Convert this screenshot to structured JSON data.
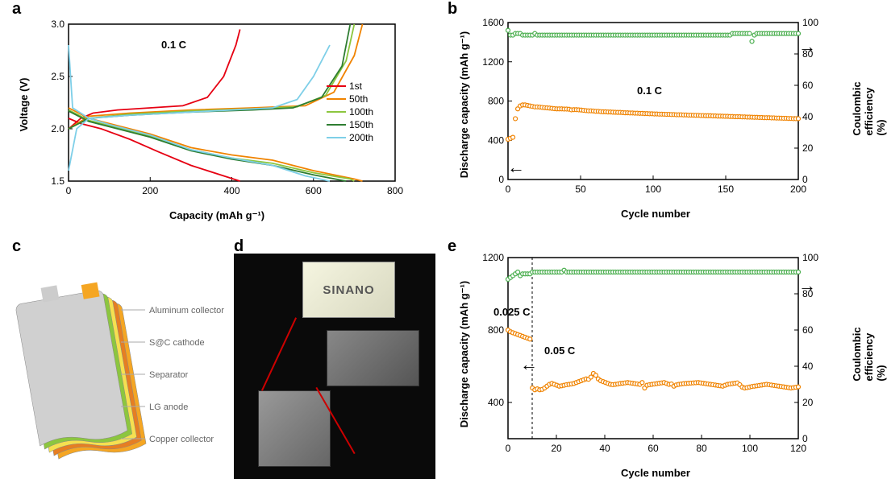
{
  "panel_a": {
    "label": "a",
    "title": "0.1 C",
    "xlabel": "Capacity (mAh g⁻¹)",
    "ylabel": "Voltage (V)",
    "xlim": [
      0,
      800
    ],
    "xtick_step": 200,
    "ylim": [
      1.5,
      3.0
    ],
    "ytick_step": 0.5,
    "axis_color": "#000000",
    "tick_fontsize": 12,
    "label_fontsize": 13,
    "legend": [
      {
        "label": "1st",
        "color": "#e60012"
      },
      {
        "label": "50th",
        "color": "#f08300"
      },
      {
        "label": "100th",
        "color": "#8cc63f"
      },
      {
        "label": "150th",
        "color": "#2e7d32"
      },
      {
        "label": "200th",
        "color": "#7ecfe8"
      }
    ],
    "series": {
      "1st_charge": {
        "color": "#e60012",
        "points": [
          [
            0,
            2.0
          ],
          [
            30,
            2.1
          ],
          [
            60,
            2.15
          ],
          [
            120,
            2.18
          ],
          [
            200,
            2.2
          ],
          [
            280,
            2.22
          ],
          [
            340,
            2.3
          ],
          [
            380,
            2.5
          ],
          [
            410,
            2.8
          ],
          [
            420,
            2.95
          ]
        ]
      },
      "1st_discharge": {
        "color": "#e60012",
        "points": [
          [
            0,
            2.1
          ],
          [
            30,
            2.05
          ],
          [
            80,
            2.0
          ],
          [
            150,
            1.9
          ],
          [
            220,
            1.78
          ],
          [
            300,
            1.65
          ],
          [
            380,
            1.55
          ],
          [
            420,
            1.5
          ]
        ]
      },
      "50th_charge": {
        "color": "#f08300",
        "points": [
          [
            0,
            2.0
          ],
          [
            50,
            2.12
          ],
          [
            150,
            2.15
          ],
          [
            300,
            2.18
          ],
          [
            450,
            2.2
          ],
          [
            580,
            2.22
          ],
          [
            650,
            2.35
          ],
          [
            700,
            2.7
          ],
          [
            720,
            3.0
          ]
        ]
      },
      "50th_discharge": {
        "color": "#f08300",
        "points": [
          [
            0,
            2.2
          ],
          [
            50,
            2.1
          ],
          [
            100,
            2.05
          ],
          [
            200,
            1.95
          ],
          [
            300,
            1.82
          ],
          [
            400,
            1.75
          ],
          [
            500,
            1.7
          ],
          [
            600,
            1.6
          ],
          [
            700,
            1.52
          ],
          [
            720,
            1.5
          ]
        ]
      },
      "100th_charge": {
        "color": "#8cc63f",
        "points": [
          [
            0,
            2.0
          ],
          [
            50,
            2.1
          ],
          [
            150,
            2.14
          ],
          [
            300,
            2.17
          ],
          [
            450,
            2.19
          ],
          [
            560,
            2.21
          ],
          [
            630,
            2.32
          ],
          [
            680,
            2.65
          ],
          [
            700,
            3.0
          ]
        ]
      },
      "100th_discharge": {
        "color": "#8cc63f",
        "points": [
          [
            0,
            2.18
          ],
          [
            50,
            2.08
          ],
          [
            100,
            2.03
          ],
          [
            200,
            1.93
          ],
          [
            300,
            1.8
          ],
          [
            400,
            1.72
          ],
          [
            500,
            1.67
          ],
          [
            600,
            1.58
          ],
          [
            690,
            1.52
          ],
          [
            700,
            1.5
          ]
        ]
      },
      "150th_charge": {
        "color": "#2e7d32",
        "points": [
          [
            0,
            2.0
          ],
          [
            50,
            2.1
          ],
          [
            150,
            2.13
          ],
          [
            300,
            2.16
          ],
          [
            450,
            2.18
          ],
          [
            550,
            2.2
          ],
          [
            620,
            2.3
          ],
          [
            670,
            2.6
          ],
          [
            690,
            3.0
          ]
        ]
      },
      "150th_discharge": {
        "color": "#2e7d32",
        "points": [
          [
            0,
            2.17
          ],
          [
            50,
            2.07
          ],
          [
            100,
            2.02
          ],
          [
            200,
            1.92
          ],
          [
            300,
            1.79
          ],
          [
            400,
            1.71
          ],
          [
            500,
            1.65
          ],
          [
            600,
            1.56
          ],
          [
            680,
            1.5
          ]
        ]
      },
      "200th_charge": {
        "color": "#7ecfe8",
        "points": [
          [
            0,
            1.6
          ],
          [
            20,
            2.0
          ],
          [
            50,
            2.1
          ],
          [
            150,
            2.13
          ],
          [
            300,
            2.16
          ],
          [
            400,
            2.18
          ],
          [
            500,
            2.2
          ],
          [
            560,
            2.28
          ],
          [
            600,
            2.5
          ],
          [
            640,
            2.8
          ]
        ]
      },
      "200th_discharge": {
        "color": "#7ecfe8",
        "points": [
          [
            0,
            2.8
          ],
          [
            10,
            2.2
          ],
          [
            50,
            2.1
          ],
          [
            100,
            2.04
          ],
          [
            200,
            1.94
          ],
          [
            300,
            1.8
          ],
          [
            400,
            1.72
          ],
          [
            500,
            1.65
          ],
          [
            580,
            1.55
          ],
          [
            640,
            1.5
          ]
        ]
      }
    }
  },
  "panel_b": {
    "label": "b",
    "title": "0.1 C",
    "xlabel": "Cycle number",
    "xlim": [
      0,
      200
    ],
    "xtick_step": 50,
    "y1label": "Discharge capacity (mAh g⁻¹)",
    "y1lim": [
      0,
      1600
    ],
    "y1tick_step": 400,
    "y2label": "Coulombic efficiency (%)",
    "y2lim": [
      0,
      100
    ],
    "y2tick_step": 20,
    "capacity_color": "#f08300",
    "efficiency_color": "#4caf50",
    "marker_style": "circle-open",
    "marker_size": 5,
    "left_arrow": "←",
    "right_arrow": "→",
    "capacity_values": [
      410,
      420,
      430,
      620,
      720,
      750,
      760,
      760,
      755,
      750,
      745,
      740,
      740,
      738,
      735,
      732,
      730,
      728,
      725,
      722,
      720,
      720,
      720,
      718,
      718,
      716,
      710,
      712,
      712,
      710,
      708,
      705,
      702,
      700,
      700,
      698,
      695,
      695,
      692,
      690,
      690,
      688,
      688,
      686,
      685,
      684,
      684,
      682,
      680,
      680,
      678,
      678,
      676,
      676,
      674,
      674,
      672,
      672,
      670,
      670,
      668,
      668,
      666,
      666,
      665,
      664,
      664,
      662,
      662,
      660,
      660,
      660,
      658,
      658,
      656,
      656,
      655,
      654,
      654,
      652,
      652,
      650,
      650,
      650,
      648,
      648,
      646,
      646,
      645,
      644,
      644,
      642,
      642,
      640,
      640,
      640,
      638,
      638,
      636,
      636,
      635,
      634,
      634,
      632,
      632,
      630,
      630,
      630,
      628,
      628,
      626,
      626,
      625,
      624,
      624,
      622,
      622,
      620,
      620,
      620
    ],
    "efficiency_values": [
      95,
      92,
      92,
      93,
      93,
      93,
      92,
      92,
      92,
      92,
      92,
      93,
      92,
      92,
      92,
      92,
      92,
      92,
      92,
      92,
      92,
      92,
      92,
      92,
      92,
      92,
      92,
      92,
      92,
      92,
      92,
      92,
      92,
      92,
      92,
      92,
      92,
      92,
      92,
      92,
      92,
      92,
      92,
      92,
      92,
      92,
      92,
      92,
      92,
      92,
      92,
      92,
      92,
      92,
      92,
      92,
      92,
      92,
      92,
      92,
      92,
      92,
      92,
      92,
      92,
      92,
      92,
      92,
      92,
      92,
      92,
      92,
      92,
      92,
      92,
      92,
      92,
      92,
      92,
      92,
      92,
      92,
      92,
      92,
      92,
      92,
      92,
      92,
      92,
      92,
      92,
      92,
      93,
      93,
      93,
      93,
      93,
      93,
      93,
      93,
      88,
      92,
      93,
      93,
      93,
      93,
      93,
      93,
      93,
      93,
      93,
      93,
      93,
      93,
      93,
      93,
      93,
      93,
      93,
      93
    ]
  },
  "panel_c": {
    "label": "c",
    "components": [
      {
        "label": "Aluminum collector",
        "color": "#d0d0d0"
      },
      {
        "label": "S@C cathode",
        "color": "#8cc63f"
      },
      {
        "label": "Separator",
        "color": "#f5e050"
      },
      {
        "label": "LG anode",
        "color": "#e67e22"
      },
      {
        "label": "Copper collector",
        "color": "#f5a623"
      }
    ]
  },
  "panel_d": {
    "label": "d",
    "photo_bg": "#0a0a0a",
    "led_text": "SINANO",
    "led_bg": "#e8e8d0"
  },
  "panel_e": {
    "label": "e",
    "xlabel": "Cycle number",
    "xlim": [
      0,
      120
    ],
    "xtick_step": 20,
    "y1label": "Discharge capacity (mAh g⁻¹)",
    "y1lim": [
      200,
      1200
    ],
    "y1ticks": [
      400,
      800,
      1200
    ],
    "y2label": "Coulombic efficiency (%)",
    "y2lim": [
      0,
      100
    ],
    "y2tick_step": 20,
    "capacity_color": "#f08300",
    "efficiency_color": "#4caf50",
    "annot1": "0.025 C",
    "annot2": "0.05 C",
    "divider_x": 10,
    "left_arrow": "←",
    "right_arrow": "→",
    "capacity_values": [
      800,
      790,
      785,
      780,
      775,
      770,
      765,
      760,
      755,
      750,
      480,
      470,
      475,
      470,
      472,
      480,
      490,
      500,
      505,
      500,
      495,
      490,
      492,
      495,
      498,
      500,
      502,
      505,
      510,
      515,
      520,
      525,
      530,
      528,
      540,
      560,
      550,
      530,
      520,
      515,
      510,
      505,
      500,
      498,
      500,
      502,
      505,
      506,
      508,
      510,
      508,
      506,
      504,
      502,
      500,
      510,
      480,
      495,
      498,
      500,
      502,
      504,
      506,
      508,
      510,
      505,
      500,
      502,
      490,
      497,
      500,
      502,
      504,
      505,
      506,
      507,
      508,
      509,
      510,
      508,
      506,
      504,
      502,
      500,
      498,
      496,
      494,
      492,
      490,
      495,
      500,
      502,
      504,
      506,
      508,
      498,
      485,
      480,
      482,
      485,
      488,
      490,
      492,
      494,
      496,
      498,
      500,
      498,
      496,
      494,
      492,
      490,
      488,
      486,
      484,
      482,
      480,
      482,
      484,
      486
    ],
    "efficiency_values": [
      88,
      89,
      90,
      91,
      92,
      90,
      91,
      91,
      91,
      91,
      92,
      92,
      92,
      92,
      92,
      92,
      92,
      92,
      92,
      92,
      92,
      92,
      92,
      93,
      92,
      92,
      92,
      92,
      92,
      92,
      92,
      92,
      92,
      92,
      92,
      92,
      92,
      92,
      92,
      92,
      92,
      92,
      92,
      92,
      92,
      92,
      92,
      92,
      92,
      92,
      92,
      92,
      92,
      92,
      92,
      92,
      92,
      92,
      92,
      92,
      92,
      92,
      92,
      92,
      92,
      92,
      92,
      92,
      92,
      92,
      92,
      92,
      92,
      92,
      92,
      92,
      92,
      92,
      92,
      92,
      92,
      92,
      92,
      92,
      92,
      92,
      92,
      92,
      92,
      92,
      92,
      92,
      92,
      92,
      92,
      92,
      92,
      92,
      92,
      92,
      92,
      92,
      92,
      92,
      92,
      92,
      92,
      92,
      92,
      92,
      92,
      92,
      92,
      92,
      92,
      92,
      92,
      92,
      92,
      92
    ]
  }
}
